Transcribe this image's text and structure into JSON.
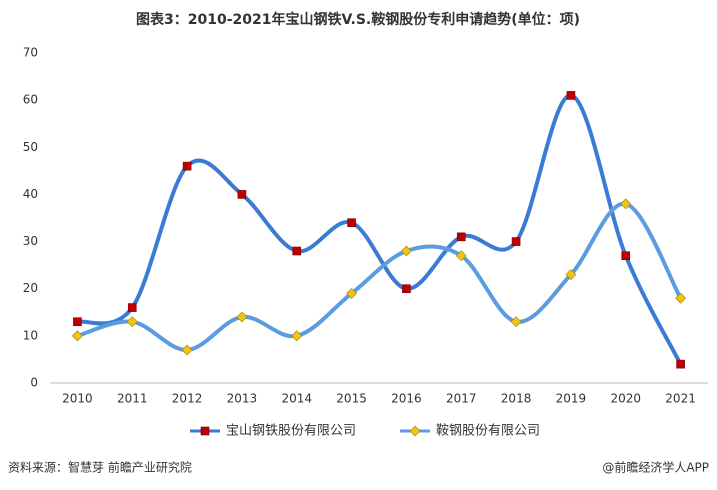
{
  "chart_data": {
    "type": "line",
    "title": "图表3：2010-2021年宝山钢铁V.S.鞍钢股份专利申请趋势(单位：项)",
    "categories": [
      "2010",
      "2011",
      "2012",
      "2013",
      "2014",
      "2015",
      "2016",
      "2017",
      "2018",
      "2019",
      "2020",
      "2021"
    ],
    "series": [
      {
        "name": "宝山钢铁股份有限公司",
        "color": "#3a7bd5",
        "marker_color": "#c00000",
        "marker": "square",
        "values": [
          13,
          16,
          46,
          40,
          28,
          34,
          20,
          31,
          30,
          61,
          27,
          4
        ]
      },
      {
        "name": "鞍钢股份有限公司",
        "color": "#5b9bdf",
        "marker_color": "#f2c314",
        "marker": "diamond",
        "values": [
          10,
          13,
          7,
          14,
          10,
          19,
          28,
          27,
          13,
          23,
          38,
          18
        ]
      }
    ],
    "ylim": [
      0,
      70
    ],
    "yticks": [
      0,
      10,
      20,
      30,
      40,
      50,
      60,
      70
    ],
    "smooth": true,
    "source": "资料来源：智慧芽 前瞻产业研究院",
    "credit": "@前瞻经济学人APP"
  }
}
